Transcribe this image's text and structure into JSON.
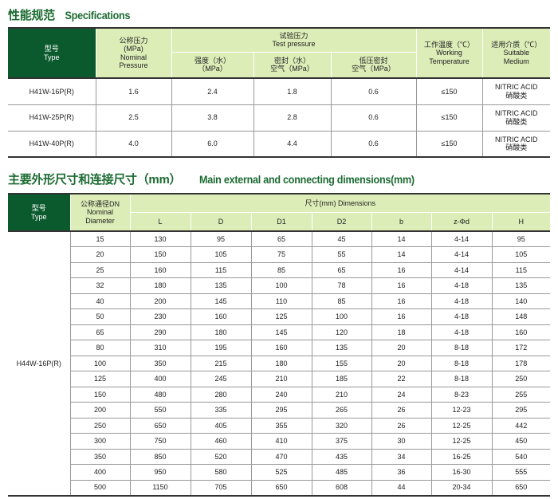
{
  "spec": {
    "title_cn": "性能规范",
    "title_en": "Specifications",
    "headers": {
      "type_cn": "型号",
      "type_en": "Type",
      "np_cn": "公称压力",
      "np_unit": "(MPa)",
      "np_en1": "Nominal",
      "np_en2": "Pressure",
      "test_cn": "试验压力",
      "test_en": "Test pressure",
      "strength": "强度（水）",
      "strength_unit": "（MPa）",
      "seal1": "密封（水）",
      "seal2": "空气（MPa）",
      "low1": "低压密封",
      "low2": "空气（MPa）",
      "temp_cn": "工作温度（℃）",
      "temp_en1": "Working",
      "temp_en2": "Temperature",
      "med_cn": "适用介质（℃）",
      "med_en1": "Suitable",
      "med_en2": "Medium"
    },
    "rows": [
      {
        "type": "H41W-16P(R)",
        "np": "1.6",
        "strength": "2.4",
        "seal": "1.8",
        "low": "0.6",
        "temp": "≤150",
        "med_en": "NITRIC ACID",
        "med_cn": "硝酸类"
      },
      {
        "type": "H41W-25P(R)",
        "np": "2.5",
        "strength": "3.8",
        "seal": "2.8",
        "low": "0.6",
        "temp": "≤150",
        "med_en": "NITRIC ACID",
        "med_cn": "硝酸类"
      },
      {
        "type": "H41W-40P(R)",
        "np": "4.0",
        "strength": "6.0",
        "seal": "4.4",
        "low": "0.6",
        "temp": "≤150",
        "med_en": "NITRIC ACID",
        "med_cn": "硝酸类"
      }
    ]
  },
  "dims": {
    "title_cn": "主要外形尺寸和连接尺寸（mm）",
    "title_en": "Main external and connecting dimensions(mm)",
    "headers": {
      "type_cn": "型号",
      "type_en": "Type",
      "dn_cn": "公称通径DN",
      "dn_en1": "Nominal",
      "dn_en2": "Diameter",
      "dim": "尺寸(mm) Dimensions",
      "cols": [
        "L",
        "D",
        "D1",
        "D2",
        "b",
        "z-Φd",
        "H"
      ]
    },
    "type": "H44W-16P(R)",
    "rows": [
      [
        "15",
        "130",
        "95",
        "65",
        "45",
        "14",
        "4-14",
        "95"
      ],
      [
        "20",
        "150",
        "105",
        "75",
        "55",
        "14",
        "4-14",
        "105"
      ],
      [
        "25",
        "160",
        "115",
        "85",
        "65",
        "16",
        "4-14",
        "115"
      ],
      [
        "32",
        "180",
        "135",
        "100",
        "78",
        "16",
        "4-18",
        "135"
      ],
      [
        "40",
        "200",
        "145",
        "110",
        "85",
        "16",
        "4-18",
        "140"
      ],
      [
        "50",
        "230",
        "160",
        "125",
        "100",
        "16",
        "4-18",
        "148"
      ],
      [
        "65",
        "290",
        "180",
        "145",
        "120",
        "18",
        "4-18",
        "160"
      ],
      [
        "80",
        "310",
        "195",
        "160",
        "135",
        "20",
        "8-18",
        "172"
      ],
      [
        "100",
        "350",
        "215",
        "180",
        "155",
        "20",
        "8-18",
        "178"
      ],
      [
        "125",
        "400",
        "245",
        "210",
        "185",
        "22",
        "8-18",
        "250"
      ],
      [
        "150",
        "480",
        "280",
        "240",
        "210",
        "24",
        "8-23",
        "255"
      ],
      [
        "200",
        "550",
        "335",
        "295",
        "265",
        "26",
        "12-23",
        "295"
      ],
      [
        "250",
        "650",
        "405",
        "355",
        "320",
        "26",
        "12-25",
        "442"
      ],
      [
        "300",
        "750",
        "460",
        "410",
        "375",
        "30",
        "12-25",
        "450"
      ],
      [
        "350",
        "850",
        "520",
        "470",
        "435",
        "34",
        "16-25",
        "540"
      ],
      [
        "400",
        "950",
        "580",
        "525",
        "485",
        "36",
        "16-30",
        "555"
      ],
      [
        "500",
        "1150",
        "705",
        "650",
        "608",
        "44",
        "20-34",
        "650"
      ]
    ]
  }
}
